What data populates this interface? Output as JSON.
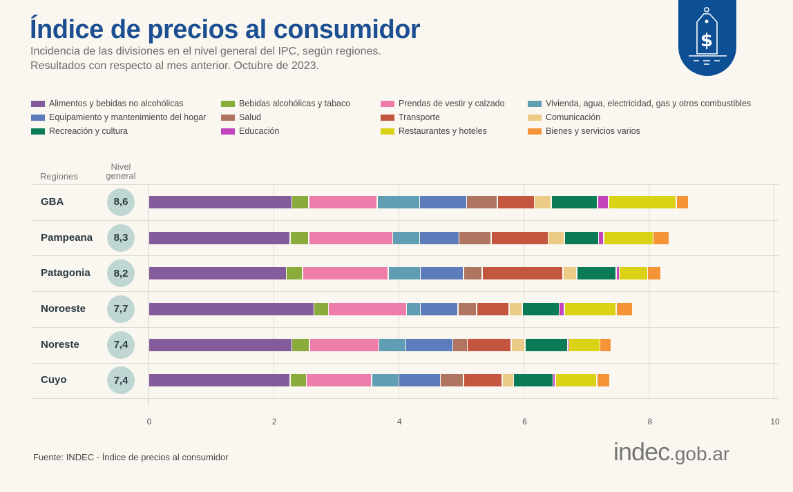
{
  "header": {
    "title": "Índice de precios al consumidor",
    "subtitle1": "Incidencia de las divisiones en el nivel general del IPC, según regiones.",
    "subtitle2": "Resultados con respecto al mes anterior. Octubre de 2023."
  },
  "table_headers": {
    "regions": "Regiones",
    "level1": "Nivel",
    "level2": "general"
  },
  "source": "Fuente: INDEC - Índice de precios al consumidor",
  "logo": {
    "main": "indec",
    "suffix": ".gob.ar"
  },
  "chart_data": {
    "type": "bar",
    "orientation": "horizontal",
    "stacked": true,
    "xlim": [
      0,
      10
    ],
    "x_ticks": [
      "0",
      "2",
      "4",
      "6",
      "8",
      "10"
    ],
    "grid": true,
    "legend_position": "top",
    "categories": [
      "GBA",
      "Pampeana",
      "Patagonia",
      "Noroeste",
      "Noreste",
      "Cuyo"
    ],
    "totals": [
      "8,6",
      "8,3",
      "8,2",
      "7,7",
      "7,4",
      "7,4"
    ],
    "series": [
      {
        "name": "Alimentos y bebidas no alcohólicas",
        "color": "#845c9c",
        "values": [
          2.29,
          2.26,
          2.2,
          2.64,
          2.29,
          2.26
        ]
      },
      {
        "name": "Bebidas alcohólicas y tabaco",
        "color": "#8bab3c",
        "values": [
          0.27,
          0.3,
          0.26,
          0.23,
          0.28,
          0.26
        ]
      },
      {
        "name": "Prendas de vestir y calzado",
        "color": "#ee7dab",
        "values": [
          1.09,
          1.34,
          1.37,
          1.25,
          1.11,
          1.04
        ]
      },
      {
        "name": "Vivienda, agua, electricidad, gas y otros combustibles",
        "color": "#5f9eb3",
        "values": [
          0.68,
          0.43,
          0.51,
          0.22,
          0.43,
          0.44
        ]
      },
      {
        "name": "Equipamiento y mantenimiento del hogar",
        "color": "#5d7cbc",
        "values": [
          0.75,
          0.63,
          0.69,
          0.6,
          0.75,
          0.66
        ]
      },
      {
        "name": "Salud",
        "color": "#b07561",
        "values": [
          0.49,
          0.51,
          0.3,
          0.3,
          0.23,
          0.37
        ]
      },
      {
        "name": "Transporte",
        "color": "#c45640",
        "values": [
          0.59,
          0.91,
          1.29,
          0.52,
          0.7,
          0.62
        ]
      },
      {
        "name": "Comunicación",
        "color": "#eccb86",
        "values": [
          0.27,
          0.26,
          0.22,
          0.21,
          0.22,
          0.18
        ]
      },
      {
        "name": "Recreación y cultura",
        "color": "#0b7b57",
        "values": [
          0.74,
          0.55,
          0.63,
          0.59,
          0.68,
          0.63
        ]
      },
      {
        "name": "Educación",
        "color": "#c443bd",
        "values": [
          0.18,
          0.08,
          0.05,
          0.08,
          0.02,
          0.04
        ]
      },
      {
        "name": "Restaurantes y hoteles",
        "color": "#dad214",
        "values": [
          1.08,
          0.79,
          0.45,
          0.83,
          0.5,
          0.66
        ]
      },
      {
        "name": "Bienes y servicios varios",
        "color": "#f59437",
        "values": [
          0.2,
          0.26,
          0.21,
          0.26,
          0.18,
          0.21
        ]
      }
    ]
  }
}
